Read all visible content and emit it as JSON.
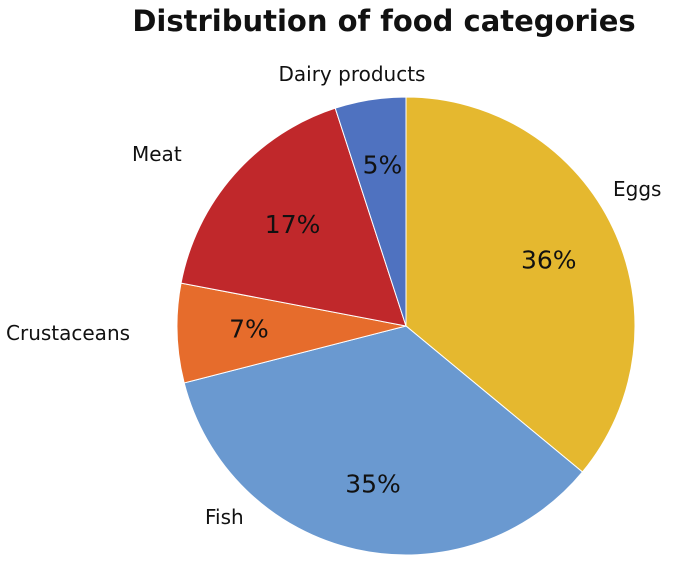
{
  "chart_data": {
    "type": "pie",
    "title": "Distribution of food categories",
    "start_angle_deg": 0,
    "direction": "clockwise",
    "legend": "none",
    "slices": [
      {
        "label": "Eggs",
        "value": 36,
        "value_label": "36%",
        "color": "#E5B82F"
      },
      {
        "label": "Fish",
        "value": 35,
        "value_label": "35%",
        "color": "#6A99D0"
      },
      {
        "label": "Crustaceans",
        "value": 7,
        "value_label": "7%",
        "color": "#E66C2C"
      },
      {
        "label": "Meat",
        "value": 17,
        "value_label": "17%",
        "color": "#C0282B"
      },
      {
        "label": "Dairy products",
        "value": 5,
        "value_label": "5%",
        "color": "#4F72C0"
      }
    ]
  }
}
